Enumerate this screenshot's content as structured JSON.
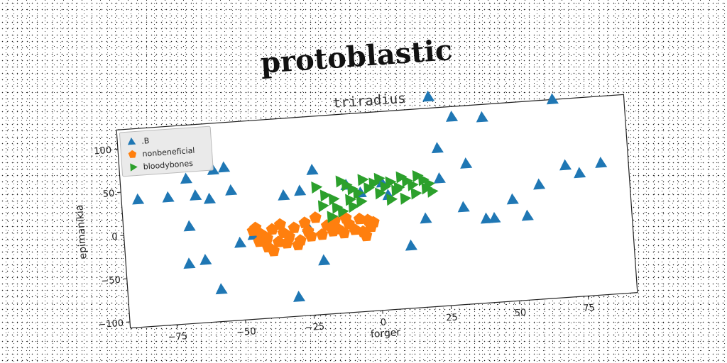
{
  "suptitle": "protoblastic",
  "chart_data": {
    "type": "scatter",
    "title": "triradius",
    "xlabel": "forger",
    "ylabel": "epimanikia",
    "xlim": [
      -92,
      93
    ],
    "ylim": [
      -107,
      122
    ],
    "xticks": [
      -75,
      -50,
      -25,
      0,
      25,
      50,
      75
    ],
    "yticks": [
      -100,
      -50,
      0,
      50,
      100
    ],
    "legend_position": "upper-left",
    "series": [
      {
        "name": ".B",
        "marker": "triangle-up",
        "color": "#1f77b4",
        "points": [
          [
            -86,
            40
          ],
          [
            -75,
            40
          ],
          [
            -68,
            60
          ],
          [
            -65,
            40
          ],
          [
            -60,
            35
          ],
          [
            -58,
            68
          ],
          [
            -54,
            70
          ],
          [
            -52,
            43
          ],
          [
            -68,
            5
          ],
          [
            -69,
            -38
          ],
          [
            -63,
            -35
          ],
          [
            -58,
            -70
          ],
          [
            -50,
            -18
          ],
          [
            -45,
            -10
          ],
          [
            -33,
            33
          ],
          [
            -27,
            37
          ],
          [
            -22,
            60
          ],
          [
            -20,
            -45
          ],
          [
            -10,
            40
          ],
          [
            -5,
            30
          ],
          [
            -30,
            -85
          ],
          [
            -25,
            -5
          ],
          [
            3,
            40
          ],
          [
            5,
            25
          ],
          [
            12,
            -35
          ],
          [
            18,
            -5
          ],
          [
            22,
            135
          ],
          [
            24,
            40
          ],
          [
            24,
            75
          ],
          [
            30,
            110
          ],
          [
            32,
            5
          ],
          [
            34,
            55
          ],
          [
            41,
            107
          ],
          [
            40,
            -10
          ],
          [
            43,
            -10
          ],
          [
            50,
            10
          ],
          [
            55,
            -10
          ],
          [
            60,
            25
          ],
          [
            67,
            122
          ],
          [
            70,
            45
          ],
          [
            75,
            35
          ],
          [
            83,
            45
          ]
        ]
      },
      {
        "name": "nonbeneficial",
        "marker": "pentagon",
        "color": "#ff7f0e",
        "points": [
          [
            -45,
            -5
          ],
          [
            -44,
            -2
          ],
          [
            -42,
            -10
          ],
          [
            -40,
            -15
          ],
          [
            -40,
            -25
          ],
          [
            -38,
            -30
          ],
          [
            -36,
            -20
          ],
          [
            -35,
            0
          ],
          [
            -34,
            -10
          ],
          [
            -32,
            -15
          ],
          [
            -30,
            -5
          ],
          [
            -28,
            -20
          ],
          [
            -26,
            0
          ],
          [
            -25,
            -10
          ],
          [
            -22,
            5
          ],
          [
            -20,
            -15
          ],
          [
            -18,
            -5
          ],
          [
            -15,
            0
          ],
          [
            -14,
            -10
          ],
          [
            -12,
            -15
          ],
          [
            -10,
            -5
          ],
          [
            -8,
            -12
          ],
          [
            -6,
            0
          ],
          [
            -5,
            -15
          ],
          [
            -4,
            -20
          ],
          [
            -2,
            -10
          ],
          [
            -1,
            -5
          ],
          [
            -33,
            -22
          ],
          [
            -24,
            -16
          ],
          [
            -16,
            -12
          ],
          [
            -11,
            2
          ],
          [
            -3,
            -2
          ],
          [
            -38,
            -5
          ],
          [
            -43,
            -18
          ],
          [
            -29,
            -25
          ]
        ]
      },
      {
        "name": "bloodybones",
        "marker": "triangle-right",
        "color": "#2ca02c",
        "points": [
          [
            -21,
            40
          ],
          [
            -18,
            30
          ],
          [
            -15,
            25
          ],
          [
            -12,
            45
          ],
          [
            -10,
            40
          ],
          [
            -8,
            35
          ],
          [
            -6,
            30
          ],
          [
            -4,
            45
          ],
          [
            -2,
            35
          ],
          [
            0,
            40
          ],
          [
            2,
            45
          ],
          [
            4,
            35
          ],
          [
            6,
            40
          ],
          [
            8,
            30
          ],
          [
            10,
            45
          ],
          [
            12,
            40
          ],
          [
            14,
            35
          ],
          [
            16,
            45
          ],
          [
            18,
            40
          ],
          [
            20,
            35
          ],
          [
            -16,
            5
          ],
          [
            -12,
            10
          ],
          [
            -8,
            15
          ],
          [
            -5,
            20
          ],
          [
            -14,
            15
          ],
          [
            6,
            20
          ],
          [
            11,
            20
          ],
          [
            15,
            25
          ],
          [
            19,
            30
          ],
          [
            21,
            26
          ],
          [
            -19,
            18
          ],
          [
            -9,
            23
          ],
          [
            2,
            28
          ],
          [
            9,
            33
          ]
        ]
      }
    ]
  }
}
